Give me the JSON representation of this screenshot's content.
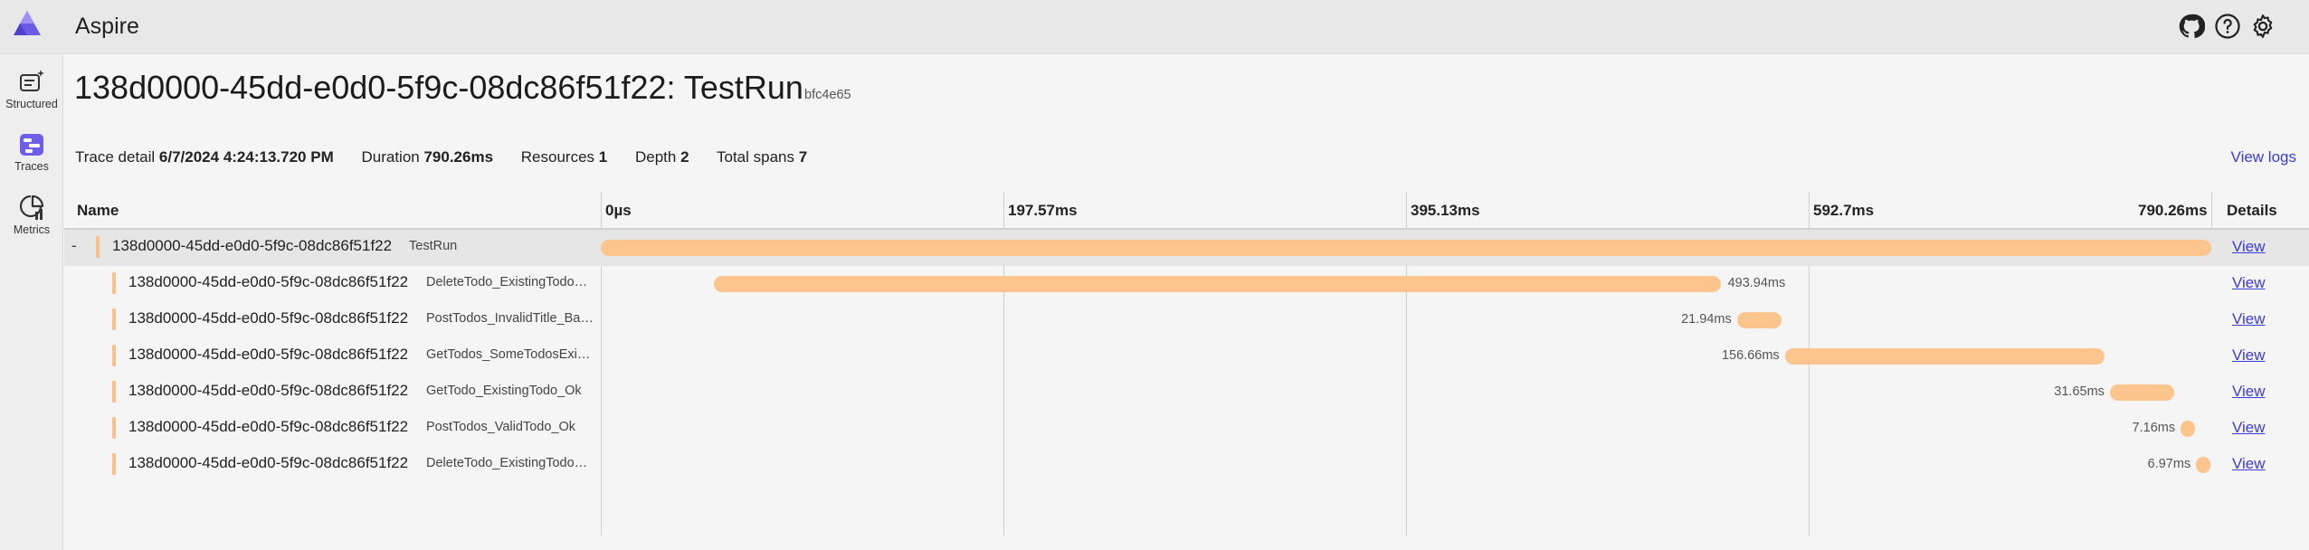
{
  "app": {
    "title": "Aspire",
    "header_icons": [
      "github-icon",
      "help-icon",
      "settings-icon"
    ]
  },
  "sidebar": {
    "items": [
      {
        "label": "Structured",
        "icon": "structured-logs-icon"
      },
      {
        "label": "Traces",
        "icon": "traces-icon",
        "active": true
      },
      {
        "label": "Metrics",
        "icon": "metrics-icon"
      }
    ]
  },
  "page": {
    "title": "138d0000-45dd-e0d0-5f9c-08dc86f51f22: TestRun",
    "trace_short_id": "bfc4e65",
    "meta": {
      "trace_detail_label": "Trace detail",
      "trace_detail_value": "6/7/2024 4:24:13.720 PM",
      "duration_label": "Duration",
      "duration_value": "790.26ms",
      "resources_label": "Resources",
      "resources_value": "1",
      "depth_label": "Depth",
      "depth_value": "2",
      "total_spans_label": "Total spans",
      "total_spans_value": "7"
    },
    "view_logs": "View logs"
  },
  "grid": {
    "headers": {
      "name": "Name",
      "details": "Details",
      "ticks": [
        "0µs",
        "197.57ms",
        "395.13ms",
        "592.7ms",
        "790.26ms"
      ]
    },
    "total_ms": 790.26,
    "rows": [
      {
        "collapse": "-",
        "trace_id": "138d0000-45dd-e0d0-5f9c-08dc86f51f22",
        "name": "TestRun",
        "start_ms": 0,
        "duration_ms": 790.26,
        "duration_label": "",
        "view": "View",
        "selected": true,
        "level": 0
      },
      {
        "trace_id": "138d0000-45dd-e0d0-5f9c-08dc86f51f22",
        "name": "DeleteTodo_ExistingTodo_Ok",
        "start_ms": 55.5,
        "duration_ms": 493.94,
        "duration_label": "493.94ms",
        "view": "View",
        "level": 1
      },
      {
        "trace_id": "138d0000-45dd-e0d0-5f9c-08dc86f51f22",
        "name": "PostTodos_InvalidTitle_BadRequest",
        "start_ms": 557.5,
        "duration_ms": 21.94,
        "duration_label": "21.94ms",
        "view": "View",
        "level": 1
      },
      {
        "trace_id": "138d0000-45dd-e0d0-5f9c-08dc86f51f22",
        "name": "GetTodos_SomeTodosExist_Ok",
        "start_ms": 581.0,
        "duration_ms": 156.66,
        "duration_label": "156.66ms",
        "view": "View",
        "level": 1
      },
      {
        "trace_id": "138d0000-45dd-e0d0-5f9c-08dc86f51f22",
        "name": "GetTodo_ExistingTodo_Ok",
        "start_ms": 740.5,
        "duration_ms": 31.65,
        "duration_label": "31.65ms",
        "view": "View",
        "level": 1
      },
      {
        "trace_id": "138d0000-45dd-e0d0-5f9c-08dc86f51f22",
        "name": "PostTodos_ValidTodo_Ok",
        "start_ms": 775.2,
        "duration_ms": 7.16,
        "duration_label": "7.16ms",
        "view": "View",
        "level": 1
      },
      {
        "trace_id": "138d0000-45dd-e0d0-5f9c-08dc86f51f22",
        "name": "DeleteTodo_ExistingTodo_NotFound",
        "start_ms": 782.8,
        "duration_ms": 6.97,
        "duration_label": "6.97ms",
        "view": "View",
        "level": 1
      }
    ]
  },
  "colors": {
    "accent": "#3a3cd6",
    "span_bar": "#fcc58e",
    "header_bg": "#e8e8e8"
  }
}
